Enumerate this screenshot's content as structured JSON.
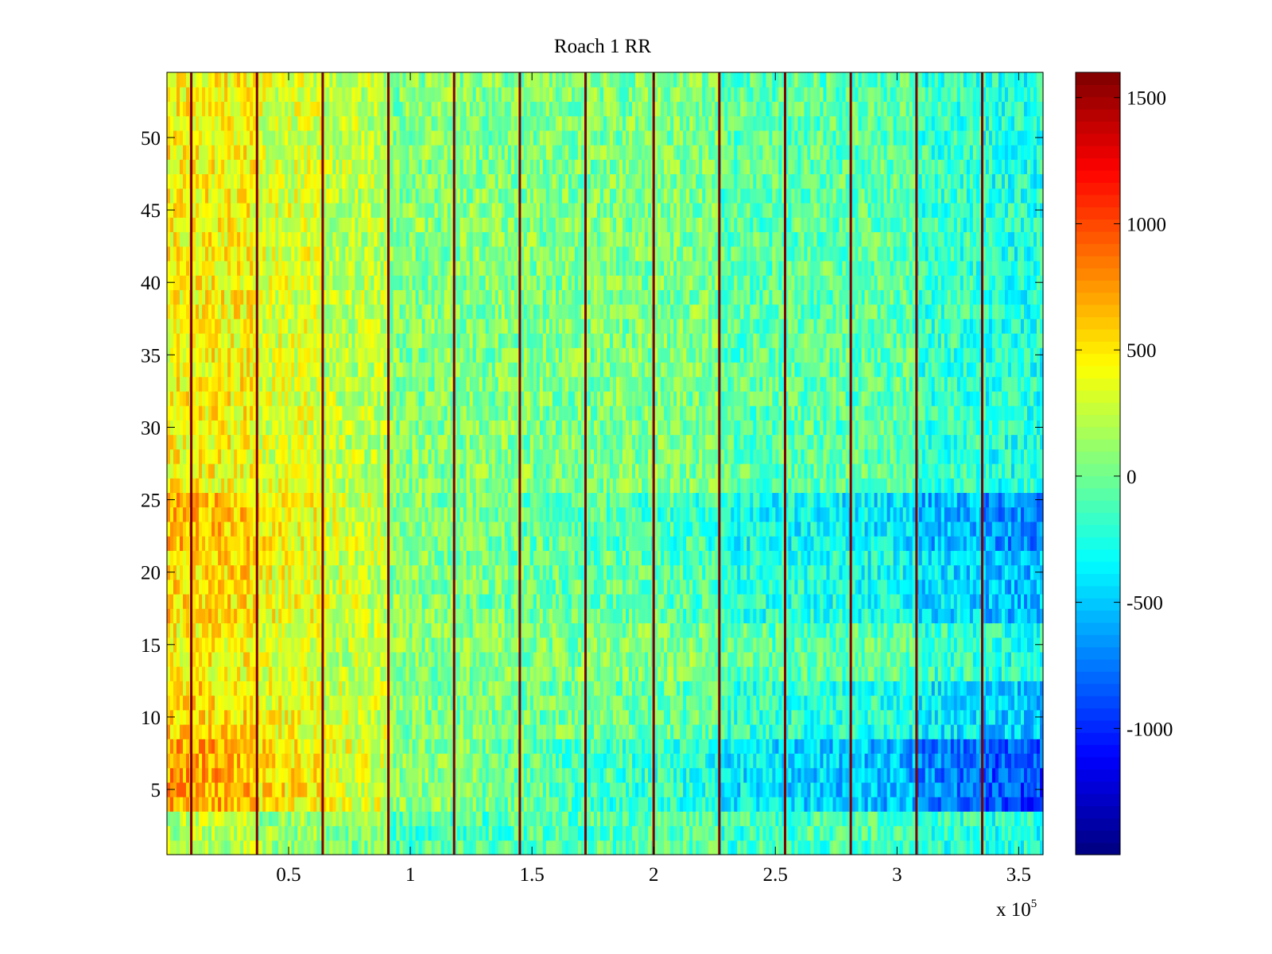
{
  "chart_data": {
    "type": "heatmap",
    "title": "Roach 1 RR",
    "xlabel": "",
    "ylabel": "",
    "x_exponent_label": {
      "base": "x 10",
      "exponent": "5"
    },
    "xlim": [
      0,
      360000
    ],
    "ylim": [
      0.5,
      54.5
    ],
    "x_ticks": [
      {
        "value": 50000,
        "label": "0.5"
      },
      {
        "value": 100000,
        "label": "1"
      },
      {
        "value": 150000,
        "label": "1.5"
      },
      {
        "value": 200000,
        "label": "2"
      },
      {
        "value": 250000,
        "label": "2.5"
      },
      {
        "value": 300000,
        "label": "3"
      },
      {
        "value": 350000,
        "label": "3.5"
      }
    ],
    "y_ticks": [
      {
        "value": 5,
        "label": "5"
      },
      {
        "value": 10,
        "label": "10"
      },
      {
        "value": 15,
        "label": "15"
      },
      {
        "value": 20,
        "label": "20"
      },
      {
        "value": 25,
        "label": "25"
      },
      {
        "value": 30,
        "label": "30"
      },
      {
        "value": 35,
        "label": "35"
      },
      {
        "value": 40,
        "label": "40"
      },
      {
        "value": 45,
        "label": "45"
      },
      {
        "value": 50,
        "label": "50"
      }
    ],
    "colormap": "jet",
    "clim": [
      -1500,
      1600
    ],
    "colorbar_ticks": [
      {
        "value": 1500,
        "label": "1500"
      },
      {
        "value": 1000,
        "label": "1000"
      },
      {
        "value": 500,
        "label": "500"
      },
      {
        "value": 0,
        "label": "0"
      },
      {
        "value": -500,
        "label": "-500"
      },
      {
        "value": -1000,
        "label": "-1000"
      }
    ],
    "vertical_bands": [
      10000,
      37000,
      64000,
      91000,
      118000,
      145000,
      172000,
      200000,
      227000,
      254000,
      281000,
      308000,
      335000
    ],
    "band_value": 1600,
    "rows": 54,
    "column_segments": [
      {
        "x_start": 0,
        "x_end": 37000,
        "mean": 450
      },
      {
        "x_start": 37000,
        "x_end": 64000,
        "mean": 330
      },
      {
        "x_start": 64000,
        "x_end": 91000,
        "mean": 240
      },
      {
        "x_start": 91000,
        "x_end": 145000,
        "mean": 60
      },
      {
        "x_start": 145000,
        "x_end": 227000,
        "mean": 40
      },
      {
        "x_start": 227000,
        "x_end": 308000,
        "mean": -60
      },
      {
        "x_start": 308000,
        "x_end": 335000,
        "mean": -180
      },
      {
        "x_start": 335000,
        "x_end": 360000,
        "mean": -250
      }
    ],
    "row_effects": [
      {
        "rows": [
          4,
          8
        ],
        "left_shift": 300,
        "right_shift": -650
      },
      {
        "rows": [
          9,
          12
        ],
        "left_shift": 120,
        "right_shift": -250
      },
      {
        "rows": [
          17,
          21
        ],
        "left_shift": 120,
        "right_shift": -300
      },
      {
        "rows": [
          22,
          25
        ],
        "left_shift": 200,
        "right_shift": -450
      },
      {
        "rows": [
          1,
          3
        ],
        "left_shift": -250,
        "right_shift": 0
      }
    ],
    "grid": false
  }
}
